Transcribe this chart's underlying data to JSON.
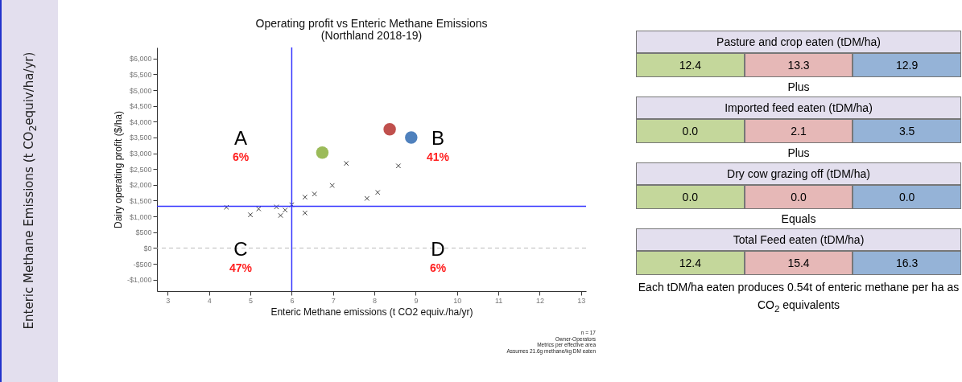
{
  "chart_data": [
    {
      "type": "scatter",
      "title": "Operating profit vs Enteric Methane Emissions",
      "subtitle": "(Northland 2018-19)",
      "xlabel": "Enteric Methane emissions (t CO2 equiv./ha/yr)",
      "ylabel": "Dairy operating profit ($/ha)",
      "xlim": [
        2.74,
        13.12
      ],
      "xticks": [
        3,
        4,
        5,
        6,
        7,
        8,
        9,
        10,
        11,
        12,
        13
      ],
      "ylim": [
        -1365,
        6350
      ],
      "yticks": [
        {
          "value": -1000,
          "label": "-$1,000"
        },
        {
          "value": -500,
          "label": "-$500"
        },
        {
          "value": 0,
          "label": "$0"
        },
        {
          "value": 500,
          "label": "$500"
        },
        {
          "value": 1000,
          "label": "$1,000"
        },
        {
          "value": 1500,
          "label": "$1,500"
        },
        {
          "value": 2000,
          "label": "$2,000"
        },
        {
          "value": 2500,
          "label": "$2,500"
        },
        {
          "value": 3000,
          "label": "$3,000"
        },
        {
          "value": 3500,
          "label": "$3,500"
        },
        {
          "value": 4000,
          "label": "$4,000"
        },
        {
          "value": 4500,
          "label": "$4,500"
        },
        {
          "value": 5000,
          "label": "$5,000"
        },
        {
          "value": 5500,
          "label": "$5,500"
        },
        {
          "value": 6000,
          "label": "$6,000"
        }
      ],
      "grid": false,
      "series": [
        {
          "color": "#444444",
          "marker": "cross",
          "x": [
            4.42,
            5.0,
            5.2,
            5.63,
            5.73,
            5.84,
            6.0,
            6.32,
            6.32,
            6.55,
            6.98,
            7.32,
            7.82,
            8.08,
            8.58
          ],
          "values": [
            1290,
            1050,
            1240,
            1300,
            1030,
            1200,
            1370,
            1110,
            1610,
            1710,
            1980,
            2680,
            1570,
            1760,
            2600
          ]
        },
        {
          "color": "#9bbb59",
          "marker": "circle",
          "x": [
            6.74
          ],
          "values": [
            3020
          ]
        },
        {
          "color": "#c0504d",
          "marker": "circle",
          "x": [
            8.37
          ],
          "values": [
            3760
          ]
        },
        {
          "color": "#4f81bd",
          "marker": "circle",
          "x": [
            8.89
          ],
          "values": [
            3500
          ]
        }
      ],
      "ref_lines": [
        {
          "axis": "x",
          "value": 6,
          "color": "#3333ff",
          "line_style": "solid"
        },
        {
          "axis": "y",
          "value": 1320,
          "color": "#3333ff",
          "line_style": "solid"
        },
        {
          "axis": "y",
          "value": 0,
          "color": "#bbbbbb",
          "line_style": "dashed"
        }
      ],
      "annotations": [
        "A",
        "6%",
        "B",
        "41%",
        "C",
        "47%",
        "D",
        "6%",
        "n = 17",
        "Owner-Operators",
        "Metrics per effective area",
        "Assumes 21.6g methane/kg DM eaten"
      ]
    },
    {
      "type": "other",
      "annotations": [
        "Enteric Methane Emissions (t CO$_{2}$equiv/ha/yr)",
        "Pasture and crop eaten (tDM/ha)",
        "12.4",
        "13.3",
        "12.9",
        "Plus",
        "Imported feed eaten (tDM/ha)",
        "0.0",
        "2.1",
        "3.5",
        "Plus",
        "Dry cow grazing off (tDM/ha)",
        "0.0",
        "0.0",
        "0.0",
        "Equals",
        "Total Feed eaten (tDM/ha)",
        "12.4",
        "15.4",
        "16.3",
        "Each tDM/ha eaten produces 0.54t of enteric methane per ha as CO$_{2}$ equivalents"
      ]
    }
  ]
}
